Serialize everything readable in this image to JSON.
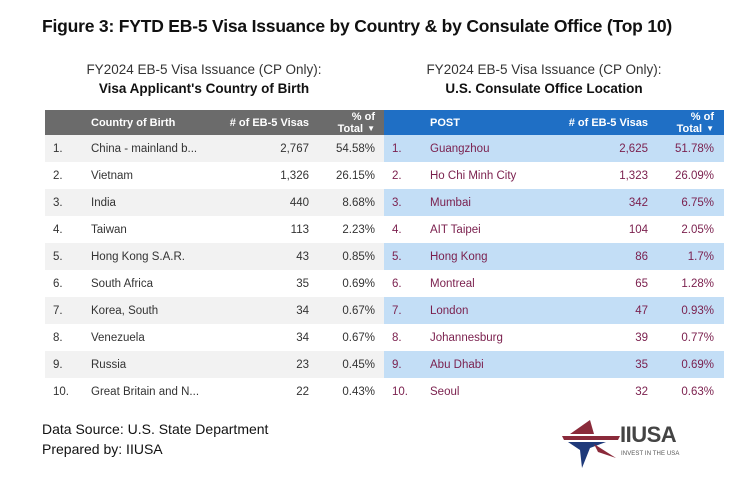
{
  "figure_title": "Figure 3: FYTD EB-5 Visa Issuance by Country & by Consulate Office (Top 10)",
  "left_table": {
    "subtitle_line1": "FY2024 EB-5 Visa Issuance (CP Only):",
    "subtitle_line2": "Visa Applicant's Country of Birth",
    "header_color": "#6b6b6b",
    "columns": [
      "Country of Birth",
      "# of EB-5 Visas",
      "% of Total"
    ],
    "sort_indicator": "▼",
    "rows": [
      {
        "rank": "1.",
        "name": "China - mainland b...",
        "visas": "2,767",
        "pct": "54.58%"
      },
      {
        "rank": "2.",
        "name": "Vietnam",
        "visas": "1,326",
        "pct": "26.15%"
      },
      {
        "rank": "3.",
        "name": "India",
        "visas": "440",
        "pct": "8.68%"
      },
      {
        "rank": "4.",
        "name": "Taiwan",
        "visas": "113",
        "pct": "2.23%"
      },
      {
        "rank": "5.",
        "name": "Hong Kong S.A.R.",
        "visas": "43",
        "pct": "0.85%"
      },
      {
        "rank": "6.",
        "name": "South Africa",
        "visas": "35",
        "pct": "0.69%"
      },
      {
        "rank": "7.",
        "name": "Korea, South",
        "visas": "34",
        "pct": "0.67%"
      },
      {
        "rank": "8.",
        "name": "Venezuela",
        "visas": "34",
        "pct": "0.67%"
      },
      {
        "rank": "9.",
        "name": "Russia",
        "visas": "23",
        "pct": "0.45%"
      },
      {
        "rank": "10.",
        "name": "Great Britain and N...",
        "visas": "22",
        "pct": "0.43%"
      }
    ]
  },
  "right_table": {
    "subtitle_line1": "FY2024 EB-5 Visa Issuance (CP Only):",
    "subtitle_line2": "U.S. Consulate Office Location",
    "header_color": "#1f6fc5",
    "columns": [
      "POST",
      "# of EB-5 Visas",
      "% of Total"
    ],
    "sort_indicator": "▼",
    "rows": [
      {
        "rank": "1.",
        "name": "Guangzhou",
        "visas": "2,625",
        "pct": "51.78%"
      },
      {
        "rank": "2.",
        "name": "Ho Chi Minh City",
        "visas": "1,323",
        "pct": "26.09%"
      },
      {
        "rank": "3.",
        "name": "Mumbai",
        "visas": "342",
        "pct": "6.75%"
      },
      {
        "rank": "4.",
        "name": "AIT Taipei",
        "visas": "104",
        "pct": "2.05%"
      },
      {
        "rank": "5.",
        "name": "Hong Kong",
        "visas": "86",
        "pct": "1.7%"
      },
      {
        "rank": "6.",
        "name": "Montreal",
        "visas": "65",
        "pct": "1.28%"
      },
      {
        "rank": "7.",
        "name": "London",
        "visas": "47",
        "pct": "0.93%"
      },
      {
        "rank": "8.",
        "name": "Johannesburg",
        "visas": "39",
        "pct": "0.77%"
      },
      {
        "rank": "9.",
        "name": "Abu Dhabi",
        "visas": "35",
        "pct": "0.69%"
      },
      {
        "rank": "10.",
        "name": "Seoul",
        "visas": "32",
        "pct": "0.63%"
      }
    ]
  },
  "footer": {
    "source": "Data Source: U.S. State Department",
    "prepared_by": "Prepared by: IIUSA"
  },
  "logo": {
    "name": "IIUSA",
    "tagline": "INVEST IN THE USA",
    "icon": "star-logo-icon"
  }
}
